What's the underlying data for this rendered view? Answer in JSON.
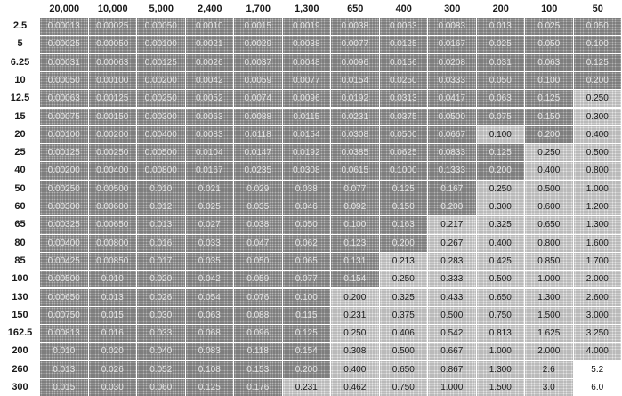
{
  "table": {
    "columns": [
      "20,000",
      "10,000",
      "5,000",
      "2,400",
      "1,700",
      "1,300",
      "650",
      "400",
      "300",
      "200",
      "100",
      "50"
    ],
    "rows": [
      {
        "label": "2.5",
        "cells": [
          "0.00013",
          "0.00025",
          "0.00050",
          "0.0010",
          "0.0015",
          "0.0019",
          "0.0038",
          "0.0063",
          "0.0083",
          "0.013",
          "0.025",
          "0.050"
        ],
        "shades": [
          "s",
          "s",
          "s",
          "s",
          "s",
          "s",
          "s",
          "s",
          "s",
          "s",
          "s",
          "s"
        ]
      },
      {
        "label": "5",
        "cells": [
          "0.00025",
          "0.00050",
          "0.00100",
          "0.0021",
          "0.0029",
          "0.0038",
          "0.0077",
          "0.0125",
          "0.0167",
          "0.025",
          "0.050",
          "0.100"
        ],
        "shades": [
          "s",
          "s",
          "s",
          "s",
          "s",
          "s",
          "s",
          "s",
          "s",
          "s",
          "s",
          "s"
        ]
      },
      {
        "label": "6.25",
        "cells": [
          "0.00031",
          "0.00063",
          "0.00125",
          "0.0026",
          "0.0037",
          "0.0048",
          "0.0096",
          "0.0156",
          "0.0208",
          "0.031",
          "0.063",
          "0.125"
        ],
        "shades": [
          "s",
          "s",
          "s",
          "s",
          "s",
          "s",
          "s",
          "s",
          "s",
          "s",
          "s",
          "s"
        ]
      },
      {
        "label": "10",
        "cells": [
          "0.00050",
          "0.00100",
          "0.00200",
          "0.0042",
          "0.0059",
          "0.0077",
          "0.0154",
          "0.0250",
          "0.0333",
          "0.050",
          "0.100",
          "0.200"
        ],
        "shades": [
          "s",
          "s",
          "s",
          "s",
          "s",
          "s",
          "s",
          "s",
          "s",
          "s",
          "s",
          "s"
        ]
      },
      {
        "label": "12.5",
        "cells": [
          "0.00063",
          "0.00125",
          "0.00250",
          "0.0052",
          "0.0074",
          "0.0096",
          "0.0192",
          "0.0313",
          "0.0417",
          "0.063",
          "0.125",
          "0.250"
        ],
        "shades": [
          "s",
          "s",
          "s",
          "s",
          "s",
          "s",
          "s",
          "s",
          "s",
          "s",
          "s",
          "l"
        ]
      },
      {
        "label": "15",
        "cells": [
          "0.00075",
          "0.00150",
          "0.00300",
          "0.0063",
          "0.0088",
          "0.0115",
          "0.0231",
          "0.0375",
          "0.0500",
          "0.075",
          "0.150",
          "0.300"
        ],
        "shades": [
          "s",
          "s",
          "s",
          "s",
          "s",
          "s",
          "s",
          "s",
          "s",
          "s",
          "s",
          "l"
        ]
      },
      {
        "label": "20",
        "cells": [
          "0.00100",
          "0.00200",
          "0.00400",
          "0.0083",
          "0.0118",
          "0.0154",
          "0.0308",
          "0.0500",
          "0.0667",
          "0.100",
          "0.200",
          "0.400"
        ],
        "shades": [
          "s",
          "s",
          "s",
          "s",
          "s",
          "s",
          "s",
          "s",
          "s",
          "l",
          "s",
          "l"
        ]
      },
      {
        "label": "25",
        "cells": [
          "0.00125",
          "0.00250",
          "0.00500",
          "0.0104",
          "0.0147",
          "0.0192",
          "0.0385",
          "0.0625",
          "0.0833",
          "0.125",
          "0.250",
          "0.500"
        ],
        "shades": [
          "s",
          "s",
          "s",
          "s",
          "s",
          "s",
          "s",
          "s",
          "s",
          "s",
          "l",
          "l"
        ]
      },
      {
        "label": "40",
        "cells": [
          "0.00200",
          "0.00400",
          "0.00800",
          "0.0167",
          "0.0235",
          "0.0308",
          "0.0615",
          "0.1000",
          "0.1333",
          "0.200",
          "0.400",
          "0.800"
        ],
        "shades": [
          "s",
          "s",
          "s",
          "s",
          "s",
          "s",
          "s",
          "s",
          "s",
          "s",
          "l",
          "l"
        ]
      },
      {
        "label": "50",
        "cells": [
          "0.00250",
          "0.00500",
          "0.010",
          "0.021",
          "0.029",
          "0.038",
          "0.077",
          "0.125",
          "0.167",
          "0.250",
          "0.500",
          "1.000"
        ],
        "shades": [
          "s",
          "s",
          "s",
          "s",
          "s",
          "s",
          "s",
          "s",
          "s",
          "l",
          "l",
          "l"
        ]
      },
      {
        "label": "60",
        "cells": [
          "0.00300",
          "0.00600",
          "0.012",
          "0.025",
          "0.035",
          "0.046",
          "0.092",
          "0.150",
          "0.200",
          "0.300",
          "0.600",
          "1.200"
        ],
        "shades": [
          "s",
          "s",
          "s",
          "s",
          "s",
          "s",
          "s",
          "s",
          "s",
          "l",
          "l",
          "l"
        ]
      },
      {
        "label": "65",
        "cells": [
          "0.00325",
          "0.00650",
          "0.013",
          "0.027",
          "0.038",
          "0.050",
          "0.100",
          "0.163",
          "0.217",
          "0.325",
          "0.650",
          "1.300"
        ],
        "shades": [
          "s",
          "s",
          "s",
          "s",
          "s",
          "s",
          "s",
          "s",
          "l",
          "l",
          "l",
          "l"
        ]
      },
      {
        "label": "80",
        "cells": [
          "0.00400",
          "0.00800",
          "0.016",
          "0.033",
          "0.047",
          "0.062",
          "0.123",
          "0.200",
          "0.267",
          "0.400",
          "0.800",
          "1.600"
        ],
        "shades": [
          "s",
          "s",
          "s",
          "s",
          "s",
          "s",
          "s",
          "s",
          "l",
          "l",
          "l",
          "l"
        ]
      },
      {
        "label": "85",
        "cells": [
          "0.00425",
          "0.00850",
          "0.017",
          "0.035",
          "0.050",
          "0.065",
          "0.131",
          "0.213",
          "0.283",
          "0.425",
          "0.850",
          "1.700"
        ],
        "shades": [
          "s",
          "s",
          "s",
          "s",
          "s",
          "s",
          "s",
          "l",
          "l",
          "l",
          "l",
          "l"
        ]
      },
      {
        "label": "100",
        "cells": [
          "0.00500",
          "0.010",
          "0.020",
          "0.042",
          "0.059",
          "0.077",
          "0.154",
          "0.250",
          "0.333",
          "0.500",
          "1.000",
          "2.000"
        ],
        "shades": [
          "s",
          "s",
          "s",
          "s",
          "s",
          "s",
          "s",
          "l",
          "l",
          "l",
          "l",
          "l"
        ]
      },
      {
        "label": "130",
        "cells": [
          "0.00650",
          "0.013",
          "0.026",
          "0.054",
          "0.076",
          "0.100",
          "0.200",
          "0.325",
          "0.433",
          "0.650",
          "1.300",
          "2.600"
        ],
        "shades": [
          "s",
          "s",
          "s",
          "s",
          "s",
          "s",
          "l",
          "l",
          "l",
          "l",
          "l",
          "l"
        ]
      },
      {
        "label": "150",
        "cells": [
          "0.00750",
          "0.015",
          "0.030",
          "0.063",
          "0.088",
          "0.115",
          "0.231",
          "0.375",
          "0.500",
          "0.750",
          "1.500",
          "3.000"
        ],
        "shades": [
          "s",
          "s",
          "s",
          "s",
          "s",
          "s",
          "l",
          "l",
          "l",
          "l",
          "l",
          "l"
        ]
      },
      {
        "label": "162.5",
        "cells": [
          "0.00813",
          "0.016",
          "0.033",
          "0.068",
          "0.096",
          "0.125",
          "0.250",
          "0.406",
          "0.542",
          "0.813",
          "1.625",
          "3.250"
        ],
        "shades": [
          "s",
          "s",
          "s",
          "s",
          "s",
          "s",
          "l",
          "l",
          "l",
          "l",
          "l",
          "l"
        ]
      },
      {
        "label": "200",
        "cells": [
          "0.010",
          "0.020",
          "0.040",
          "0.083",
          "0.118",
          "0.154",
          "0.308",
          "0.500",
          "0.667",
          "1.000",
          "2.000",
          "4.000"
        ],
        "shades": [
          "s",
          "s",
          "s",
          "s",
          "s",
          "s",
          "l",
          "l",
          "l",
          "l",
          "l",
          "l"
        ]
      },
      {
        "label": "260",
        "cells": [
          "0.013",
          "0.026",
          "0.052",
          "0.108",
          "0.153",
          "0.200",
          "0.400",
          "0.650",
          "0.867",
          "1.300",
          "2.6",
          "5.2"
        ],
        "shades": [
          "s",
          "s",
          "s",
          "s",
          "s",
          "s",
          "l",
          "l",
          "l",
          "l",
          "l",
          "w"
        ]
      },
      {
        "label": "300",
        "cells": [
          "0.015",
          "0.030",
          "0.060",
          "0.125",
          "0.176",
          "0.231",
          "0.462",
          "0.750",
          "1.000",
          "1.500",
          "3.0",
          "6.0"
        ],
        "shades": [
          "s",
          "s",
          "s",
          "s",
          "s",
          "l",
          "l",
          "l",
          "l",
          "l",
          "l",
          "w"
        ]
      }
    ]
  },
  "colors": {
    "dark_shade": "#8d8d8d",
    "light_shade": "#c9c9c9",
    "plain": "#ffffff"
  }
}
